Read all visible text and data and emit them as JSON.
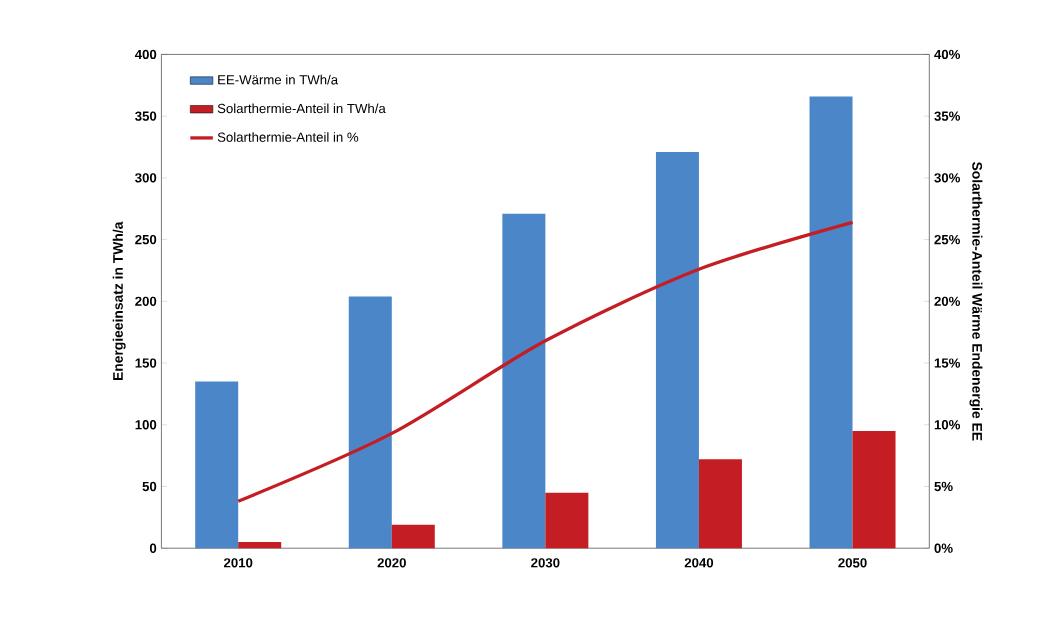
{
  "chart_data": {
    "type": "bar",
    "ylabel": "Energieeinsatz in TWh/a",
    "y2label": "Solarthermie-Anteil Wärme Endenergie  EE",
    "categories": [
      "2010",
      "2020",
      "2030",
      "2040",
      "2050"
    ],
    "series": [
      {
        "name": "EE-Wärme in TWh/a",
        "color": "#4a86c8",
        "values": [
          135,
          204,
          271,
          321,
          366
        ]
      },
      {
        "name": "Solarthermie-Anteil in TWh/a",
        "color": "#c41e24",
        "values": [
          5,
          19,
          45,
          72,
          95
        ]
      },
      {
        "name": "Solarthermie-Anteil in %",
        "type": "line",
        "axis": "y2",
        "color": "#c41e24",
        "values": [
          3.8,
          9.3,
          16.8,
          22.6,
          26.4
        ]
      }
    ],
    "ylim": [
      0,
      400
    ],
    "yticks": [
      0,
      50,
      100,
      150,
      200,
      250,
      300,
      350,
      400
    ],
    "y2lim": [
      0,
      40
    ],
    "y2ticks": [
      {
        "value": 0,
        "label": "0%"
      },
      {
        "value": 5,
        "label": "5%"
      },
      {
        "value": 10,
        "label": "10%"
      },
      {
        "value": 15,
        "label": "15%"
      },
      {
        "value": 20,
        "label": "20%"
      },
      {
        "value": 25,
        "label": "25%"
      },
      {
        "value": 30,
        "label": "30%"
      },
      {
        "value": 35,
        "label": "35%"
      },
      {
        "value": 40,
        "label": "40%"
      }
    ],
    "legend": "top left"
  }
}
